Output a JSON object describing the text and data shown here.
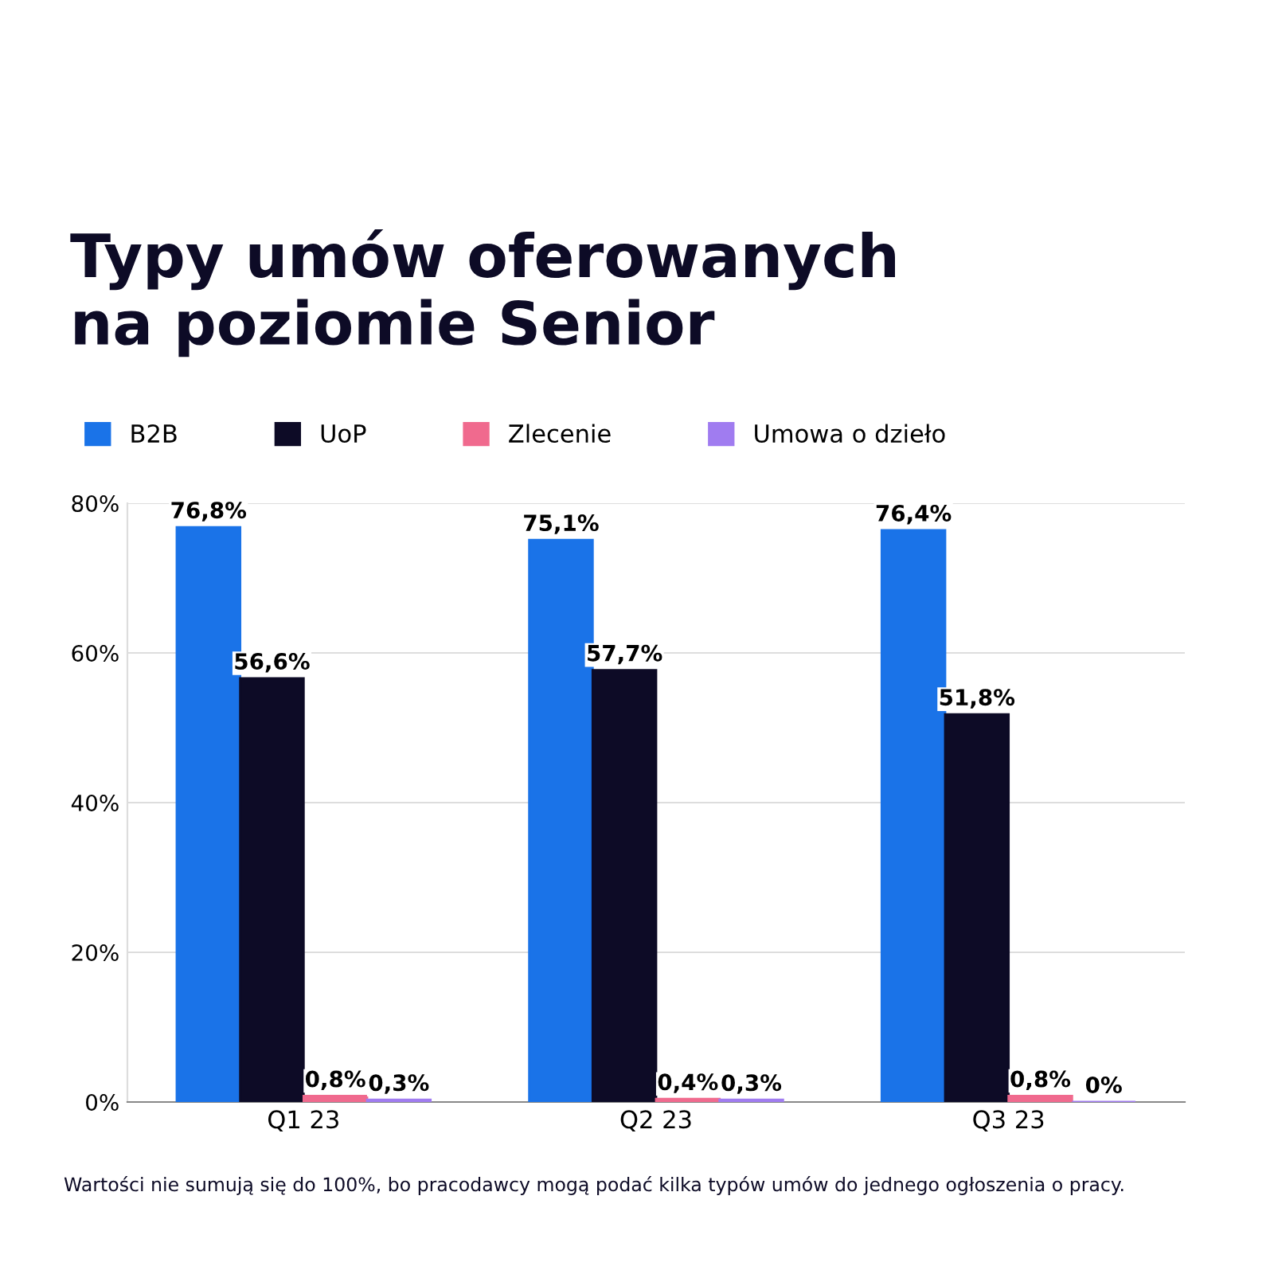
{
  "chart_data": {
    "type": "bar",
    "title": "Typy umów oferowanych\nna poziomie Senior",
    "categories": [
      "Q1 23",
      "Q2 23",
      "Q3 23"
    ],
    "series": [
      {
        "name": "B2B",
        "color": "#1a73e8",
        "values": [
          76.8,
          75.1,
          76.4
        ],
        "value_labels": [
          "76,8%",
          "75,1%",
          "76,4%"
        ]
      },
      {
        "name": "UoP",
        "color": "#0d0b26",
        "values": [
          56.6,
          57.7,
          51.8
        ],
        "value_labels": [
          "56,6%",
          "57,7%",
          "51,8%"
        ]
      },
      {
        "name": "Zlecenie",
        "color": "#f06a8e",
        "values": [
          0.8,
          0.4,
          0.8
        ],
        "value_labels": [
          "0,8%",
          "0,4%",
          "0,8%"
        ]
      },
      {
        "name": "Umowa o dzieło",
        "color": "#a07cf0",
        "values": [
          0.3,
          0.3,
          0
        ],
        "value_labels": [
          "0,3%",
          "0,3%",
          "0%"
        ]
      }
    ],
    "ylim": [
      0,
      80
    ],
    "yticks": [
      {
        "value": 0,
        "label": "0%"
      },
      {
        "value": 20,
        "label": "20%"
      },
      {
        "value": 40,
        "label": "40%"
      },
      {
        "value": 60,
        "label": "60%"
      },
      {
        "value": 80,
        "label": "80%"
      }
    ],
    "grid": "y",
    "legend": "top left",
    "annotations": [
      "Wartości nie sumują się do 100%, bo pracodawcy mogą podać kilka typów umów do jednego ogłoszenia o pracy."
    ]
  }
}
